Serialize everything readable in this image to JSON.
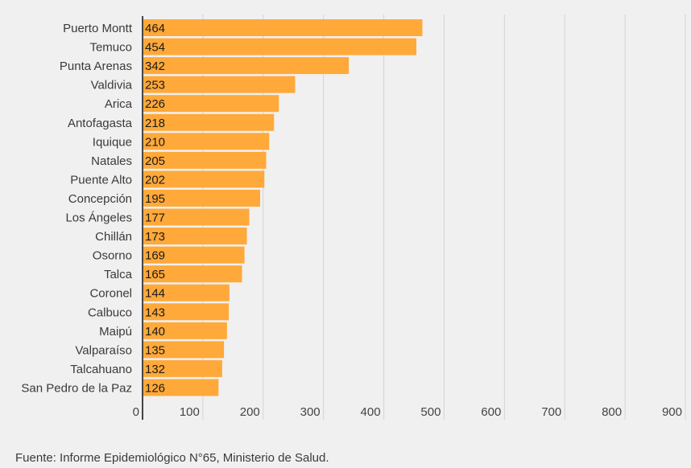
{
  "chart_data": {
    "type": "bar",
    "orientation": "horizontal",
    "categories": [
      "Puerto Montt",
      "Temuco",
      "Punta Arenas",
      "Valdivia",
      "Arica",
      "Antofagasta",
      "Iquique",
      "Natales",
      "Puente Alto",
      "Concepción",
      "Los Ángeles",
      "Chillán",
      "Osorno",
      "Talca",
      "Coronel",
      "Calbuco",
      "Maipú",
      "Valparaíso",
      "Talcahuano",
      "San Pedro de la Paz"
    ],
    "values": [
      464,
      454,
      342,
      253,
      226,
      218,
      210,
      205,
      202,
      195,
      177,
      173,
      169,
      165,
      144,
      143,
      140,
      135,
      132,
      126
    ],
    "xlim": [
      0,
      900
    ],
    "xticks": [
      0,
      100,
      200,
      300,
      400,
      500,
      600,
      700,
      800,
      900
    ],
    "grid": true,
    "bar_color": "#ffa93a",
    "title": "",
    "xlabel": "",
    "ylabel": ""
  },
  "source": "Fuente: Informe Epidemiológico N°65, Ministerio de Salud."
}
